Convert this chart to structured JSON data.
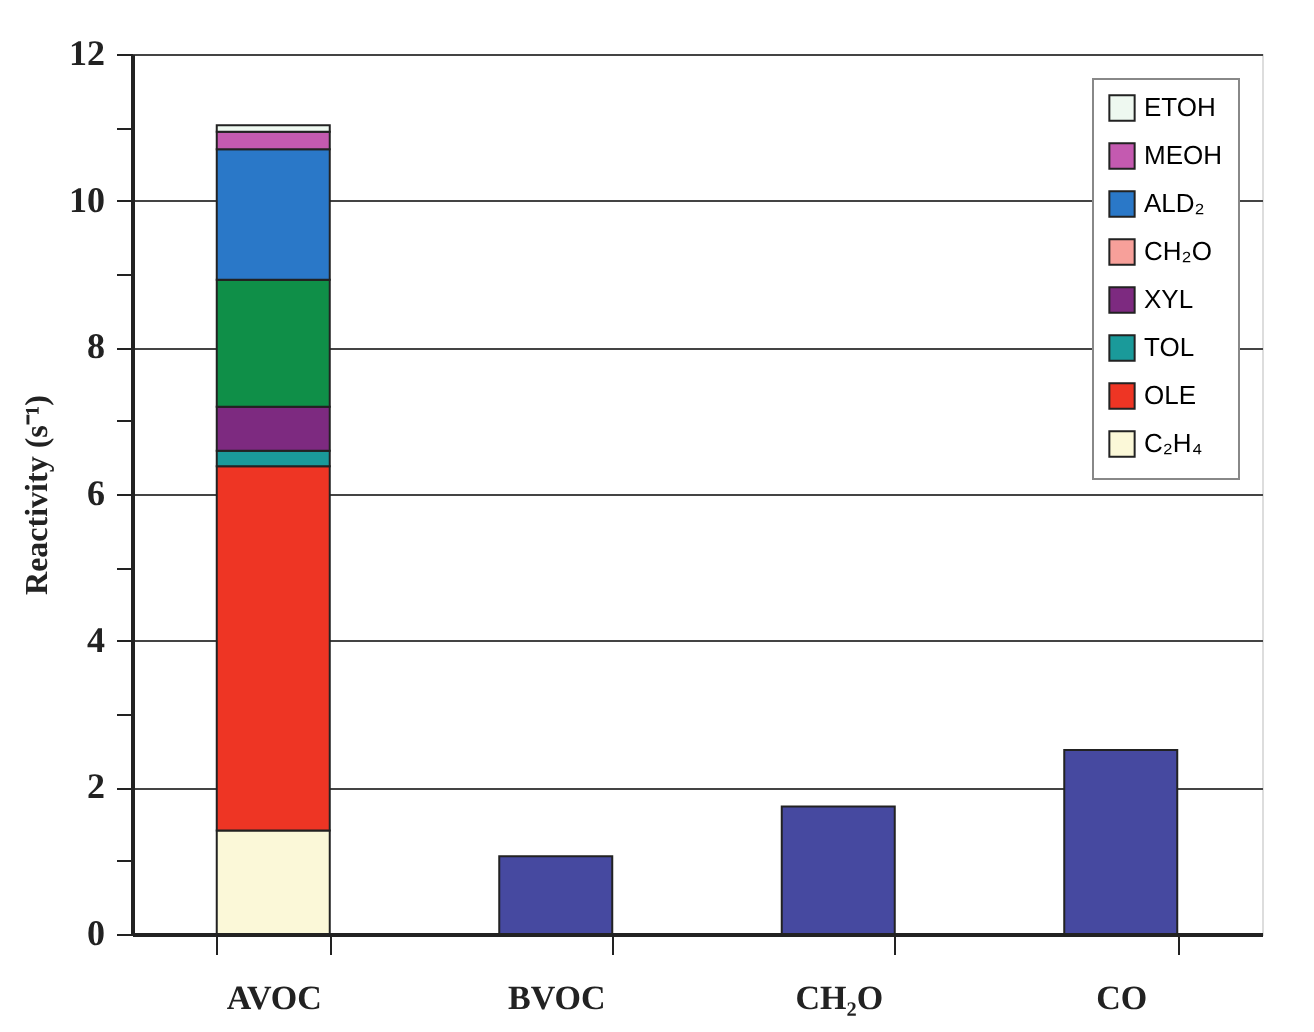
{
  "chart_data": {
    "type": "bar",
    "stacked": true,
    "ylabel": "Reactivity (s⁻¹)",
    "categories": [
      "AVOC",
      "BVOC",
      "CH₂O",
      "CO"
    ],
    "series": [
      {
        "name": "C₂H₄",
        "color": "#fbf8d8",
        "values": [
          1.41,
          null,
          null,
          null
        ]
      },
      {
        "name": "OLE",
        "color": "#ee3524",
        "values": [
          4.97,
          null,
          null,
          null
        ]
      },
      {
        "name": "TOL",
        "color": "#1a9a9a",
        "values": [
          0.21,
          null,
          null,
          null
        ]
      },
      {
        "name": "XYL",
        "color": "#7d2a80",
        "values": [
          0.6,
          null,
          null,
          null
        ]
      },
      {
        "color": "#0f8f48",
        "values": [
          1.73,
          null,
          null,
          null
        ]
      },
      {
        "name": "CH₂O",
        "color": "#f7a09a",
        "values": [
          0,
          null,
          null,
          null
        ]
      },
      {
        "name": "ALD₂",
        "color": "#2a78c8",
        "values": [
          1.78,
          null,
          null,
          null
        ]
      },
      {
        "name": "MEOH",
        "color": "#c45ab0",
        "values": [
          0.24,
          null,
          null,
          null
        ]
      },
      {
        "name": "ETOH",
        "color": "#eef8f0",
        "values": [
          0.09,
          null,
          null,
          null
        ]
      },
      {
        "color": "#4649a0",
        "values": [
          null,
          1.06,
          1.74,
          2.51
        ]
      }
    ],
    "ylim": [
      0,
      12
    ],
    "yticks": [
      0,
      {
        "value": 1,
        "label": null
      },
      2,
      {
        "value": 3,
        "label": null
      },
      4,
      {
        "value": 5,
        "label": null
      },
      6,
      {
        "value": 7,
        "label": null
      },
      8,
      {
        "value": 9,
        "label": null
      },
      10,
      {
        "value": 11,
        "label": null
      },
      12
    ],
    "grid": "y",
    "legend": "top right"
  }
}
